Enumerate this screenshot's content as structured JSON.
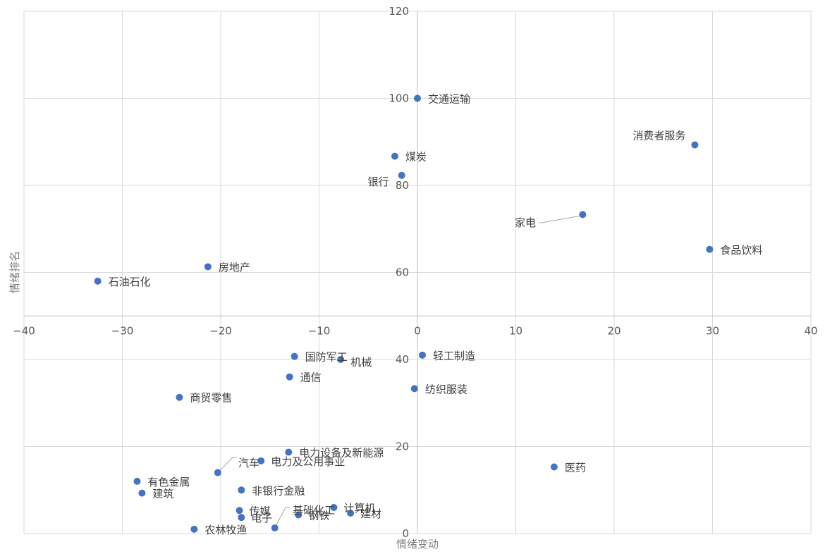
{
  "chart_data": {
    "type": "scatter",
    "xlabel": "情绪变动",
    "ylabel": "情绪排名",
    "xlim": [
      -40,
      40
    ],
    "ylim": [
      0,
      120
    ],
    "x_ticks": [
      -40,
      -30,
      -20,
      -10,
      0,
      10,
      20,
      30,
      40
    ],
    "y_ticks": [
      0,
      20,
      40,
      60,
      80,
      100,
      120
    ],
    "x_tick_labels": [
      "-40",
      "-30",
      "-20",
      "-10",
      "0",
      "10",
      "20",
      "30",
      "40"
    ],
    "y_tick_labels": [
      "0",
      "20",
      "40",
      "60",
      "80",
      "100",
      "120"
    ],
    "x_axis_crosses_y": 50,
    "grid": true,
    "legend": "none",
    "point_color": "#4472C4",
    "points": [
      {
        "name": "交通运输",
        "x": 0.0,
        "y": 100.0
      },
      {
        "name": "消费者服务",
        "x": 28.2,
        "y": 89.3
      },
      {
        "name": "煤炭",
        "x": -2.3,
        "y": 86.7
      },
      {
        "name": "银行",
        "x": -1.6,
        "y": 82.3
      },
      {
        "name": "家电",
        "x": 16.8,
        "y": 73.3
      },
      {
        "name": "食品饮料",
        "x": 29.7,
        "y": 65.3
      },
      {
        "name": "房地产",
        "x": -21.3,
        "y": 61.3
      },
      {
        "name": "石油石化",
        "x": -32.5,
        "y": 58.0
      },
      {
        "name": "国防军工",
        "x": -12.5,
        "y": 40.7
      },
      {
        "name": "机械",
        "x": -7.8,
        "y": 40.0
      },
      {
        "name": "轻工制造",
        "x": 0.5,
        "y": 41.0
      },
      {
        "name": "通信",
        "x": -13.0,
        "y": 36.0
      },
      {
        "name": "纺织服装",
        "x": -0.3,
        "y": 33.3
      },
      {
        "name": "商贸零售",
        "x": -24.2,
        "y": 31.3
      },
      {
        "name": "电力设备及新能源",
        "x": -13.1,
        "y": 18.7
      },
      {
        "name": "电力及公用事业",
        "x": -15.9,
        "y": 16.7
      },
      {
        "name": "汽车",
        "x": -20.3,
        "y": 14.0
      },
      {
        "name": "医药",
        "x": 13.9,
        "y": 15.3
      },
      {
        "name": "有色金属",
        "x": -28.5,
        "y": 12.0
      },
      {
        "name": "建筑",
        "x": -28.0,
        "y": 9.3
      },
      {
        "name": "非银行金融",
        "x": -17.9,
        "y": 10.0
      },
      {
        "name": "传媒",
        "x": -18.1,
        "y": 5.3
      },
      {
        "name": "电子",
        "x": -17.9,
        "y": 3.7
      },
      {
        "name": "基础化工",
        "x": -14.5,
        "y": 1.3
      },
      {
        "name": "计算机",
        "x": -8.5,
        "y": 6.0
      },
      {
        "name": "钢铁",
        "x": -12.1,
        "y": 4.3
      },
      {
        "name": "建材",
        "x": -6.8,
        "y": 4.7
      },
      {
        "name": "农林牧渔",
        "x": -22.7,
        "y": 1.0
      }
    ]
  }
}
